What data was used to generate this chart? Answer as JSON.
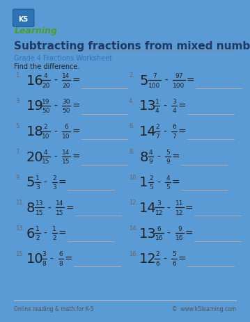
{
  "title": "Subtracting fractions from mixed numbers",
  "subtitle": "Grade 4 Fractions Worksheet",
  "instruction": "Find the difference.",
  "bg_color": "#5b9bd5",
  "inner_bg": "#ffffff",
  "title_color": "#1f3864",
  "subtitle_color": "#2e74b5",
  "text_color": "#222222",
  "num_color": "#666666",
  "line_color": "#aaaaaa",
  "footer_left": "Online reading & math for K-5",
  "footer_right": "©  www.k5learning.com",
  "problems": [
    {
      "num": "1.",
      "whole": "16",
      "n1": "4",
      "d1": "20",
      "n2": "14",
      "d2": "20"
    },
    {
      "num": "2.",
      "whole": "5",
      "n1": "7",
      "d1": "100",
      "n2": "97",
      "d2": "100"
    },
    {
      "num": "3.",
      "whole": "19",
      "n1": "19",
      "d1": "50",
      "n2": "30",
      "d2": "50"
    },
    {
      "num": "4.",
      "whole": "13",
      "n1": "1",
      "d1": "4",
      "n2": "3",
      "d2": "4"
    },
    {
      "num": "5.",
      "whole": "18",
      "n1": "2",
      "d1": "10",
      "n2": "6",
      "d2": "10"
    },
    {
      "num": "6.",
      "whole": "14",
      "n1": "2",
      "d1": "7",
      "n2": "6",
      "d2": "7"
    },
    {
      "num": "7.",
      "whole": "20",
      "n1": "4",
      "d1": "15",
      "n2": "14",
      "d2": "15"
    },
    {
      "num": "8.",
      "whole": "8",
      "n1": "4",
      "d1": "9",
      "n2": "5",
      "d2": "9"
    },
    {
      "num": "9.",
      "whole": "5",
      "n1": "1",
      "d1": "3",
      "n2": "2",
      "d2": "3"
    },
    {
      "num": "10.",
      "whole": "1",
      "n1": "2",
      "d1": "5",
      "n2": "4",
      "d2": "5"
    },
    {
      "num": "11.",
      "whole": "8",
      "n1": "13",
      "d1": "15",
      "n2": "14",
      "d2": "15"
    },
    {
      "num": "12.",
      "whole": "14",
      "n1": "3",
      "d1": "12",
      "n2": "11",
      "d2": "12"
    },
    {
      "num": "13.",
      "whole": "6",
      "n1": "1",
      "d1": "2",
      "n2": "1",
      "d2": "2"
    },
    {
      "num": "14.",
      "whole": "13",
      "n1": "6",
      "d1": "16",
      "n2": "9",
      "d2": "16"
    },
    {
      "num": "15.",
      "whole": "10",
      "n1": "3",
      "d1": "8",
      "n2": "6",
      "d2": "8"
    },
    {
      "num": "16.",
      "whole": "12",
      "n1": "2",
      "d1": "6",
      "n2": "5",
      "d2": "6"
    }
  ]
}
